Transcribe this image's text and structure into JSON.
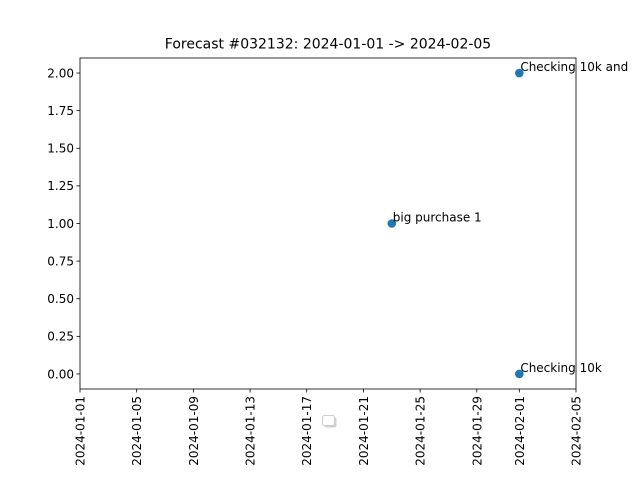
{
  "chart_data": {
    "type": "scatter",
    "title": "Forecast #032132: 2024-01-01 -> 2024-02-05",
    "xlabel": "",
    "ylabel": "",
    "xlim": [
      "2024-01-01",
      "2024-02-05"
    ],
    "ylim": [
      -0.1,
      2.1
    ],
    "grid": false,
    "legend": "empty legend box near bottom center",
    "point_color": "#1f77b4",
    "x_ticks": [
      "2024-01-01",
      "2024-01-05",
      "2024-01-09",
      "2024-01-13",
      "2024-01-17",
      "2024-01-21",
      "2024-01-25",
      "2024-01-29",
      "2024-02-01",
      "2024-02-05"
    ],
    "y_ticks": [
      0.0,
      0.25,
      0.5,
      0.75,
      1.0,
      1.25,
      1.5,
      1.75,
      2.0
    ],
    "y_tick_labels": [
      "0.00",
      "0.25",
      "0.50",
      "0.75",
      "1.00",
      "1.25",
      "1.50",
      "1.75",
      "2.00"
    ],
    "points": [
      {
        "x": "2024-02-01",
        "y": 0,
        "label": "Checking 10k"
      },
      {
        "x": "2024-01-23",
        "y": 1,
        "label": "big purchase 1"
      },
      {
        "x": "2024-02-01",
        "y": 2,
        "label": "Checking 10k and"
      }
    ]
  }
}
